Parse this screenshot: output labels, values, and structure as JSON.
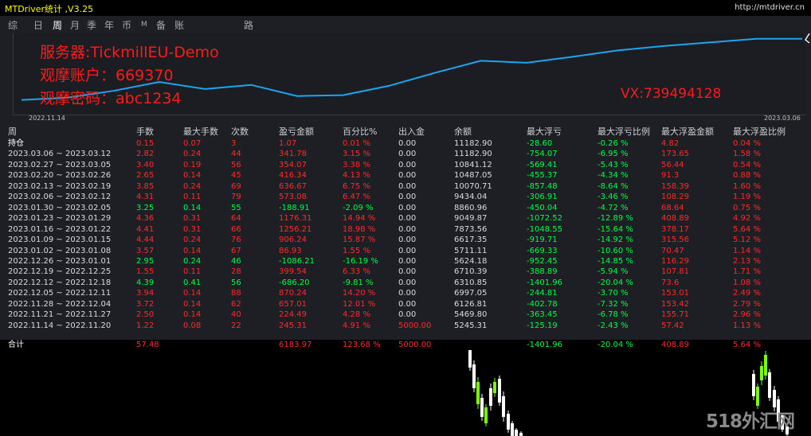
{
  "window": {
    "title": "MTDriver统计 ,V3.25",
    "url": "http://mtdriver.cn"
  },
  "tabs": [
    "综",
    "日",
    "周",
    "月",
    "季",
    "年",
    "币",
    "M",
    "备",
    "账户",
    "路径"
  ],
  "active_tab": 2,
  "info": {
    "server": "服务器:TickmillEU-Demo",
    "account": "观摩账户：669370",
    "password": "观摩密码：abc1234",
    "vx": "VX:739494128"
  },
  "chart": {
    "start_date": "2022.11.14",
    "end_date": "2023.03.06",
    "line_color": "#1aa6f0",
    "balance_series": [
      5245.31,
      5469.8,
      6126.81,
      6997.05,
      6310.85,
      6710.39,
      5624.18,
      5711.11,
      6617.35,
      7873.56,
      9049.87,
      8860.96,
      9434.04,
      10070.71,
      10487.05,
      10841.12,
      11182.9,
      11182.9
    ]
  },
  "headers": [
    "周",
    "手数",
    "最大手数",
    "次数",
    "盈亏金额",
    "百分比%",
    "出入金",
    "余额",
    "最大浮亏",
    "最大浮亏比例",
    "最大浮盈金额",
    "最大浮盈比例"
  ],
  "rows": [
    {
      "cells": [
        "持仓",
        "0.15",
        "0.07",
        "3",
        "1.07",
        "0.01 %",
        "0.00",
        "11182.90",
        "-28.60",
        "-0.26 %",
        "4.82",
        "0.04 %"
      ],
      "colors": [
        "white",
        "red",
        "red",
        "red",
        "red",
        "red",
        "gray",
        "gray",
        "green",
        "green",
        "red",
        "red"
      ]
    },
    {
      "cells": [
        "2023.03.06 ~ 2023.03.12",
        "2.82",
        "0.24",
        "44",
        "341.78",
        "3.15 %",
        "0.00",
        "11182.90",
        "-754.07",
        "-6.95 %",
        "173.65",
        "1.58 %"
      ],
      "colors": [
        "gray",
        "red",
        "red",
        "red",
        "red",
        "red",
        "gray",
        "gray",
        "green",
        "green",
        "red",
        "red"
      ]
    },
    {
      "cells": [
        "2023.02.27 ~ 2023.03.05",
        "3.40",
        "0.19",
        "56",
        "354.07",
        "3.38 %",
        "0.00",
        "10841.12",
        "-569.41",
        "-5.43 %",
        "56.44",
        "0.54 %"
      ],
      "colors": [
        "gray",
        "red",
        "red",
        "red",
        "red",
        "red",
        "gray",
        "gray",
        "green",
        "green",
        "red",
        "red"
      ]
    },
    {
      "cells": [
        "2023.02.20 ~ 2023.02.26",
        "2.65",
        "0.14",
        "45",
        "416.34",
        "4.13 %",
        "0.00",
        "10487.05",
        "-455.37",
        "-4.34 %",
        "91.3",
        "0.88 %"
      ],
      "colors": [
        "gray",
        "red",
        "red",
        "red",
        "red",
        "red",
        "gray",
        "gray",
        "green",
        "green",
        "red",
        "red"
      ]
    },
    {
      "cells": [
        "2023.02.13 ~ 2023.02.19",
        "3.85",
        "0.24",
        "69",
        "636.67",
        "6.75 %",
        "0.00",
        "10070.71",
        "-857.48",
        "-8.64 %",
        "158.39",
        "1.60 %"
      ],
      "colors": [
        "gray",
        "red",
        "red",
        "red",
        "red",
        "red",
        "gray",
        "gray",
        "green",
        "green",
        "red",
        "red"
      ]
    },
    {
      "cells": [
        "2023.02.06 ~ 2023.02.12",
        "4.31",
        "0.11",
        "79",
        "573.08",
        "6.47 %",
        "0.00",
        "9434.04",
        "-306.91",
        "-3.46 %",
        "108.29",
        "1.19 %"
      ],
      "colors": [
        "gray",
        "red",
        "red",
        "red",
        "red",
        "red",
        "gray",
        "gray",
        "green",
        "green",
        "red",
        "red"
      ]
    },
    {
      "cells": [
        "2023.01.30 ~ 2023.02.05",
        "3.25",
        "0.14",
        "55",
        "-188.91",
        "-2.09 %",
        "0.00",
        "8860.96",
        "-450.04",
        "-4.72 %",
        "68.64",
        "0.75 %"
      ],
      "colors": [
        "gray",
        "green",
        "green",
        "green",
        "green",
        "green",
        "gray",
        "gray",
        "green",
        "green",
        "red",
        "red"
      ]
    },
    {
      "cells": [
        "2023.01.23 ~ 2023.01.29",
        "4.36",
        "0.31",
        "64",
        "1176.31",
        "14.94 %",
        "0.00",
        "9049.87",
        "-1072.52",
        "-12.89 %",
        "408.89",
        "4.92 %"
      ],
      "colors": [
        "gray",
        "red",
        "red",
        "red",
        "red",
        "red",
        "gray",
        "gray",
        "green",
        "green",
        "red",
        "red"
      ]
    },
    {
      "cells": [
        "2023.01.16 ~ 2023.01.22",
        "4.41",
        "0.31",
        "66",
        "1256.21",
        "18.98 %",
        "0.00",
        "7873.56",
        "-1048.55",
        "-15.64 %",
        "378.17",
        "5.64 %"
      ],
      "colors": [
        "gray",
        "red",
        "red",
        "red",
        "red",
        "red",
        "gray",
        "gray",
        "green",
        "green",
        "red",
        "red"
      ]
    },
    {
      "cells": [
        "2023.01.09 ~ 2023.01.15",
        "4.44",
        "0.24",
        "76",
        "906.24",
        "15.87 %",
        "0.00",
        "6617.35",
        "-919.71",
        "-14.92 %",
        "315.56",
        "5.12 %"
      ],
      "colors": [
        "gray",
        "red",
        "red",
        "red",
        "red",
        "red",
        "gray",
        "gray",
        "green",
        "green",
        "red",
        "red"
      ]
    },
    {
      "cells": [
        "2023.01.02 ~ 2023.01.08",
        "3.57",
        "0.14",
        "67",
        "86.93",
        "1.55 %",
        "0.00",
        "5711.11",
        "-669.33",
        "-10.60 %",
        "70.47",
        "1.14 %"
      ],
      "colors": [
        "gray",
        "red",
        "red",
        "red",
        "red",
        "red",
        "gray",
        "gray",
        "green",
        "green",
        "red",
        "red"
      ]
    },
    {
      "cells": [
        "2022.12.26 ~ 2023.01.01",
        "2.95",
        "0.24",
        "46",
        "-1086.21",
        "-16.19 %",
        "0.00",
        "5624.18",
        "-952.45",
        "-14.85 %",
        "116.29",
        "2.13 %"
      ],
      "colors": [
        "gray",
        "green",
        "green",
        "green",
        "green",
        "green",
        "gray",
        "gray",
        "green",
        "green",
        "red",
        "red"
      ]
    },
    {
      "cells": [
        "2022.12.19 ~ 2022.12.25",
        "1.55",
        "0.11",
        "28",
        "399.54",
        "6.33 %",
        "0.00",
        "6710.39",
        "-388.89",
        "-5.94 %",
        "107.81",
        "1.71 %"
      ],
      "colors": [
        "gray",
        "red",
        "red",
        "red",
        "red",
        "red",
        "gray",
        "gray",
        "green",
        "green",
        "red",
        "red"
      ]
    },
    {
      "cells": [
        "2022.12.12 ~ 2022.12.18",
        "4.39",
        "0.41",
        "56",
        "-686.20",
        "-9.81 %",
        "0.00",
        "6310.85",
        "-1401.96",
        "-20.04 %",
        "73.6",
        "1.08 %"
      ],
      "colors": [
        "gray",
        "green",
        "green",
        "green",
        "green",
        "green",
        "gray",
        "gray",
        "green",
        "green",
        "red",
        "red"
      ]
    },
    {
      "cells": [
        "2022.12.05 ~ 2022.12.11",
        "3.94",
        "0.14",
        "88",
        "870.24",
        "14.20 %",
        "0.00",
        "6997.05",
        "-244.81",
        "-3.70 %",
        "153.01",
        "2.49 %"
      ],
      "colors": [
        "gray",
        "red",
        "red",
        "red",
        "red",
        "red",
        "gray",
        "gray",
        "green",
        "green",
        "red",
        "red"
      ]
    },
    {
      "cells": [
        "2022.11.28 ~ 2022.12.04",
        "3.72",
        "0.14",
        "62",
        "657.01",
        "12.01 %",
        "0.00",
        "6126.81",
        "-402.78",
        "-7.32 %",
        "153.42",
        "2.79 %"
      ],
      "colors": [
        "gray",
        "red",
        "red",
        "red",
        "red",
        "red",
        "gray",
        "gray",
        "green",
        "green",
        "red",
        "red"
      ]
    },
    {
      "cells": [
        "2022.11.21 ~ 2022.11.27",
        "2.50",
        "0.14",
        "40",
        "224.49",
        "4.28 %",
        "0.00",
        "5469.80",
        "-363.45",
        "-6.78 %",
        "155.71",
        "2.96 %"
      ],
      "colors": [
        "gray",
        "red",
        "red",
        "red",
        "red",
        "red",
        "gray",
        "gray",
        "green",
        "green",
        "red",
        "red"
      ]
    },
    {
      "cells": [
        "2022.11.14 ~ 2022.11.20",
        "1.22",
        "0.08",
        "22",
        "245.31",
        "4.91 %",
        "5000.00",
        "5245.31",
        "-125.19",
        "-2.43 %",
        "57.42",
        "1.13 %"
      ],
      "colors": [
        "gray",
        "red",
        "red",
        "red",
        "red",
        "red",
        "red",
        "gray",
        "green",
        "green",
        "red",
        "red"
      ]
    }
  ],
  "total": {
    "cells": [
      "合计",
      "57.48",
      "",
      "",
      "6183.97",
      "123.68 %",
      "5000.00",
      "",
      "-1401.96",
      "-20.04 %",
      "408.89",
      "5.64 %"
    ],
    "colors": [
      "white",
      "red",
      "red",
      "red",
      "red",
      "red",
      "red",
      "gray",
      "green",
      "green",
      "red",
      "red"
    ]
  },
  "watermark": "518外汇网",
  "colors": {
    "profit": "#ff2a2a",
    "loss": "#00ff44",
    "panel": "#1d1f25",
    "title": "#ffff00"
  }
}
